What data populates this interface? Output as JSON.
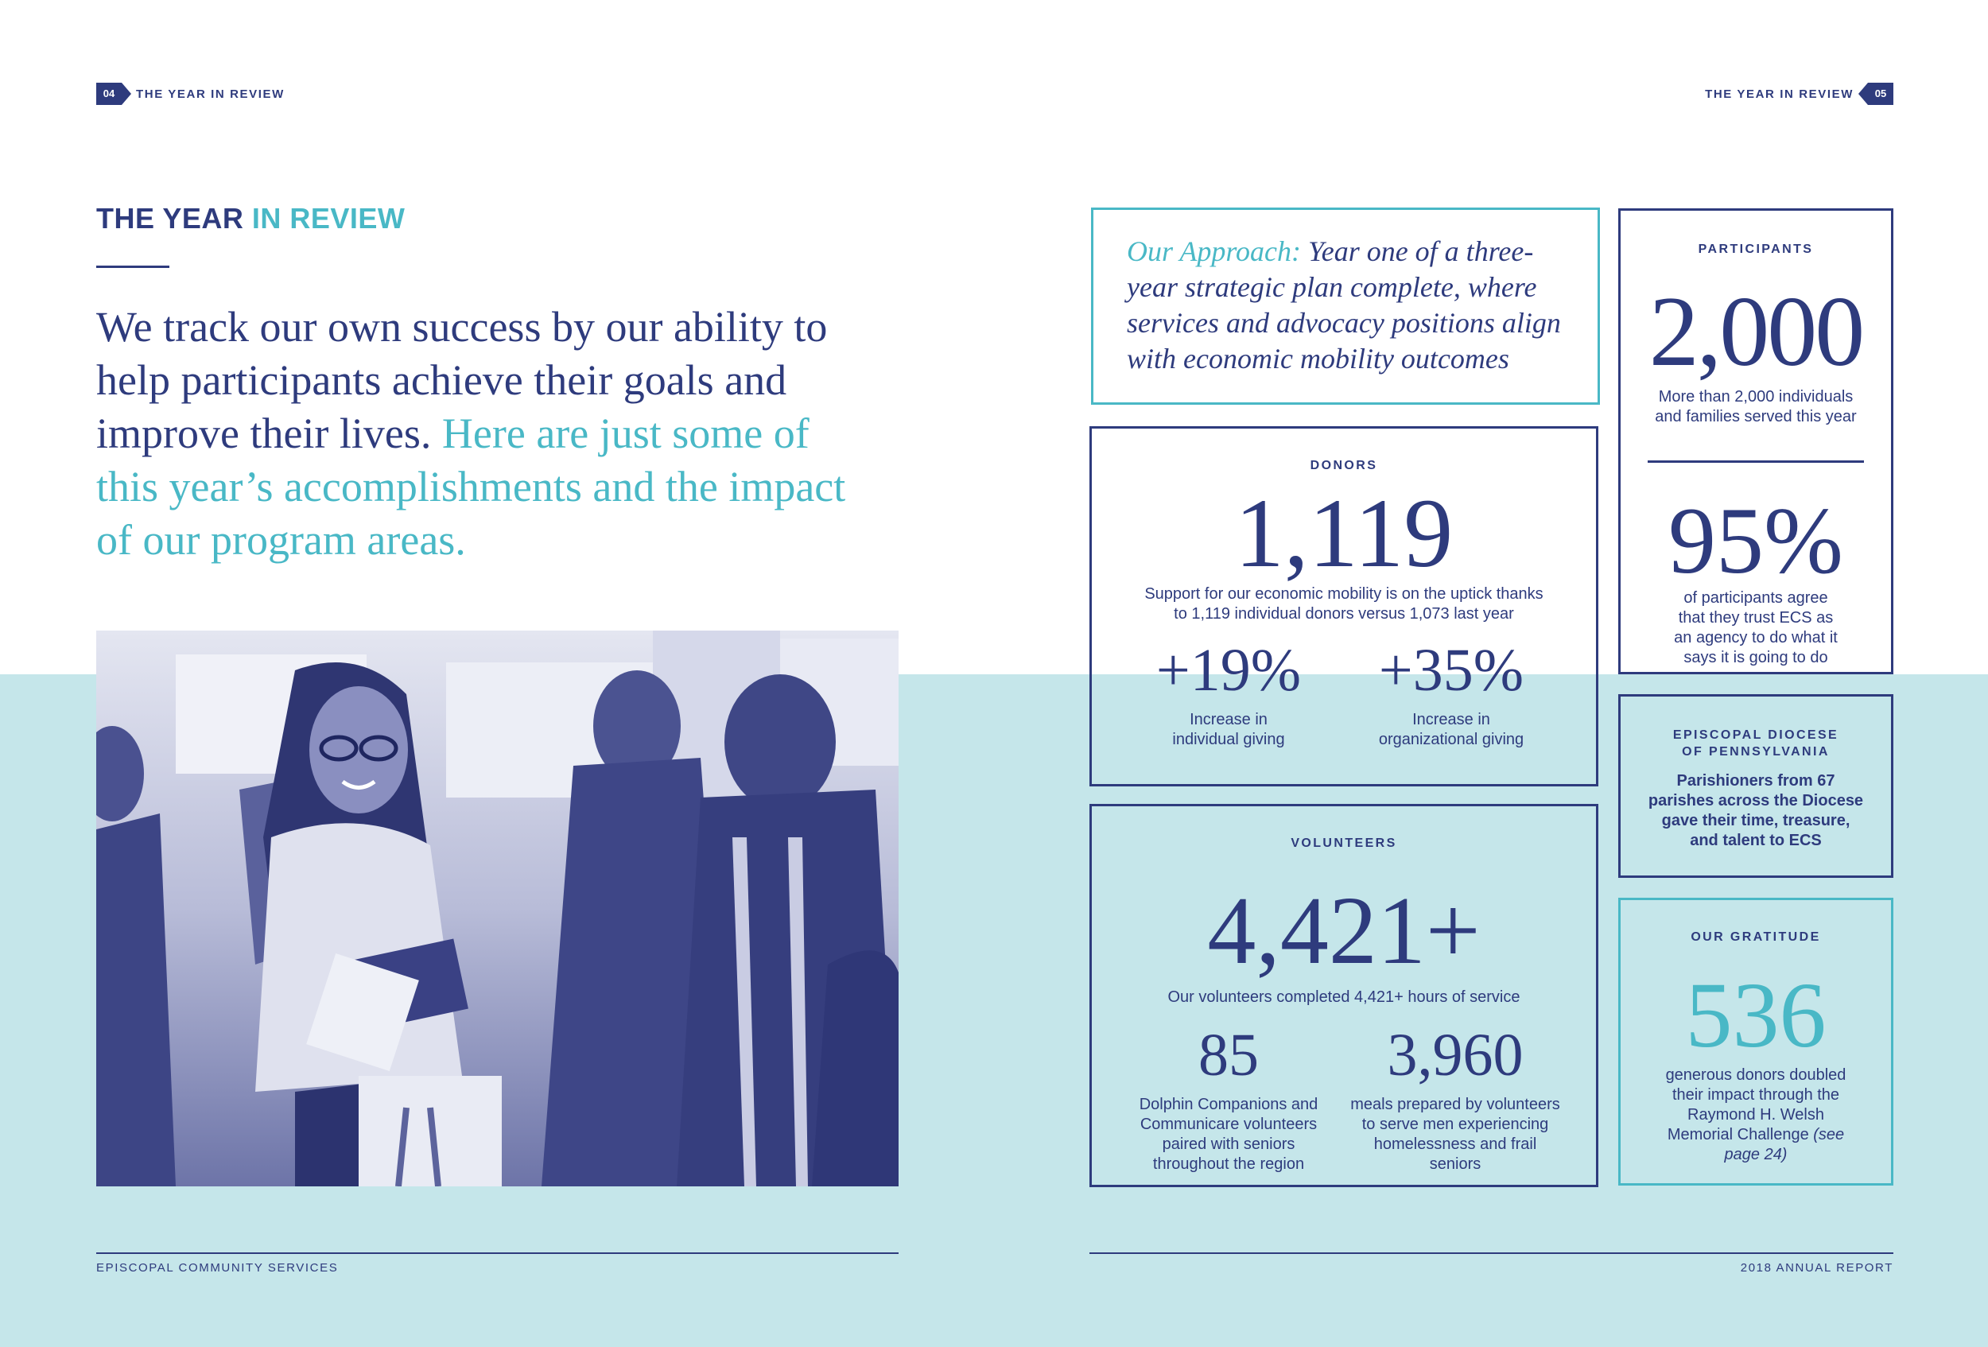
{
  "header": {
    "left_page_number": "04",
    "left_label": "THE YEAR IN REVIEW",
    "right_label": "THE YEAR IN REVIEW",
    "right_page_number": "05"
  },
  "section": {
    "heading_part1": "THE YEAR",
    "heading_part2": "IN REVIEW",
    "intro_part1": "We track our own success by our ability to help participants achieve their goals and improve their lives.",
    "intro_part2": "Here are just some of this year’s accomplishments and the impact of our program areas."
  },
  "approach": {
    "label": "Our Approach:",
    "text": "Year one of a three-year strategic plan complete, where services and advocacy positions align with economic mobility outcomes"
  },
  "participants": {
    "label": "PARTICIPANTS",
    "stat1_value": "2,000",
    "stat1_desc": "More than 2,000 individuals and families served this year",
    "stat2_value": "95%",
    "stat2_desc": "of participants agree that they trust ECS as an agency to do what it says it is going to do"
  },
  "donors": {
    "label": "DONORS",
    "value": "1,119",
    "desc": "Support for our economic mobility is on the uptick thanks to 1,119 individual donors versus 1,073 last year",
    "sub1_value": "+19%",
    "sub1_desc": "Increase in individual giving",
    "sub2_value": "+35%",
    "sub2_desc": "Increase in organizational giving"
  },
  "diocese": {
    "label": "EPISCOPAL DIOCESE OF PENNSYLVANIA",
    "desc": "Parishioners from 67 parishes across the Diocese gave their time, treasure, and talent to ECS"
  },
  "volunteers": {
    "label": "VOLUNTEERS",
    "value": "4,421+",
    "desc": "Our volunteers completed 4,421+ hours of service",
    "sub1_value": "85",
    "sub1_desc": "Dolphin Companions and Communicare volunteers paired with seniors throughout the region",
    "sub2_value": "3,960",
    "sub2_desc": "meals prepared by volunteers to serve men experiencing homelessness and frail seniors"
  },
  "gratitude": {
    "label": "OUR GRATITUDE",
    "value": "536",
    "desc": "generous donors doubled their impact through the Raymond H. Welsh Memorial Challenge",
    "desc_note": "(see page 24)"
  },
  "footer": {
    "left": "EPISCOPAL COMMUNITY SERVICES",
    "right": "2018 ANNUAL REPORT"
  },
  "colors": {
    "navy": "#2e3b7d",
    "teal": "#49b8c6",
    "band": "#c5e6ea"
  }
}
